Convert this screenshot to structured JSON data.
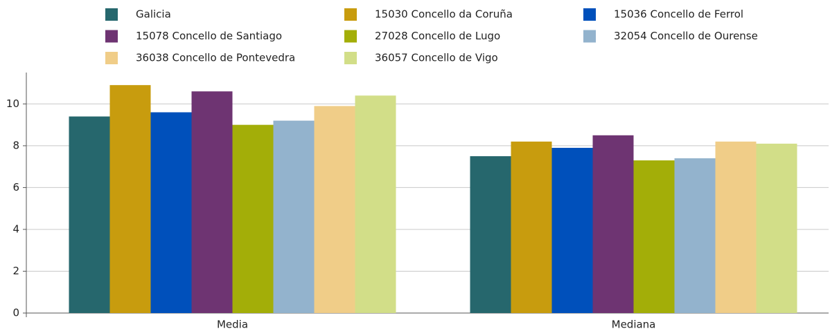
{
  "chart_data": {
    "type": "bar",
    "categories": [
      "Media",
      "Mediana"
    ],
    "series": [
      {
        "name": "Galicia",
        "color": "#26676d",
        "values": [
          9.4,
          7.5
        ]
      },
      {
        "name": "15030 Concello da Coruña",
        "color": "#c89c0e",
        "values": [
          10.9,
          8.2
        ]
      },
      {
        "name": "15036 Concello de Ferrol",
        "color": "#0050bb",
        "values": [
          9.6,
          7.9
        ]
      },
      {
        "name": "15078 Concello de Santiago",
        "color": "#6e3472",
        "values": [
          10.6,
          8.5
        ]
      },
      {
        "name": "27028 Concello de Lugo",
        "color": "#a3ae08",
        "values": [
          9.0,
          7.3
        ]
      },
      {
        "name": "32054 Concello de Ourense",
        "color": "#93b3cd",
        "values": [
          9.2,
          7.4
        ]
      },
      {
        "name": "36038 Concello de Pontevedra",
        "color": "#f0cd88",
        "values": [
          9.9,
          8.2
        ]
      },
      {
        "name": "36057 Concello de Vigo",
        "color": "#d2de88",
        "values": [
          10.4,
          8.1
        ]
      }
    ],
    "ylim": [
      0,
      11.5
    ],
    "yticks": [
      0,
      2,
      4,
      6,
      8,
      10
    ],
    "grid": true,
    "legend": "top"
  }
}
